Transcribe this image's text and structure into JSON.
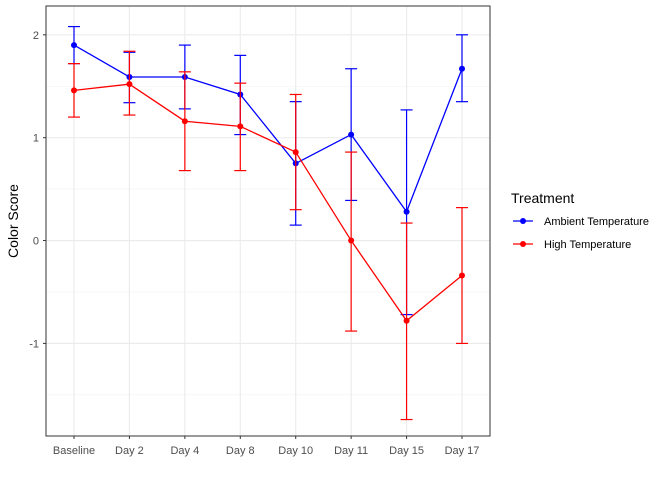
{
  "chart_data": {
    "type": "line",
    "title": "",
    "xlabel": "",
    "ylabel": "Color Score",
    "categories": [
      "Baseline",
      "Day 2",
      "Day 4",
      "Day 8",
      "Day 10",
      "Day 11",
      "Day 15",
      "Day 17"
    ],
    "ylim": [
      -1.9,
      2.28
    ],
    "yticks": [
      -1,
      0,
      1,
      2
    ],
    "ytick_labels": [
      "-1",
      "0",
      "1",
      "2"
    ],
    "grid": true,
    "legend": {
      "title": "Treatment",
      "position": "right"
    },
    "series": [
      {
        "name": "Ambient Temperature",
        "color": "#0000ff",
        "values": [
          1.9,
          1.59,
          1.59,
          1.42,
          0.75,
          1.03,
          0.28,
          1.67
        ],
        "lower": [
          1.72,
          1.34,
          1.28,
          1.03,
          0.15,
          0.39,
          -0.72,
          1.35
        ],
        "upper": [
          2.08,
          1.83,
          1.9,
          1.8,
          1.35,
          1.67,
          1.27,
          2.0
        ]
      },
      {
        "name": "High Temperature",
        "color": "#ff0000",
        "values": [
          1.46,
          1.52,
          1.16,
          1.11,
          0.86,
          0.0,
          -0.78,
          -0.34
        ],
        "lower": [
          1.2,
          1.22,
          0.68,
          0.68,
          0.3,
          -0.88,
          -1.74,
          -1.0
        ],
        "upper": [
          1.72,
          1.84,
          1.64,
          1.53,
          1.42,
          0.86,
          0.17,
          0.32
        ]
      }
    ]
  }
}
